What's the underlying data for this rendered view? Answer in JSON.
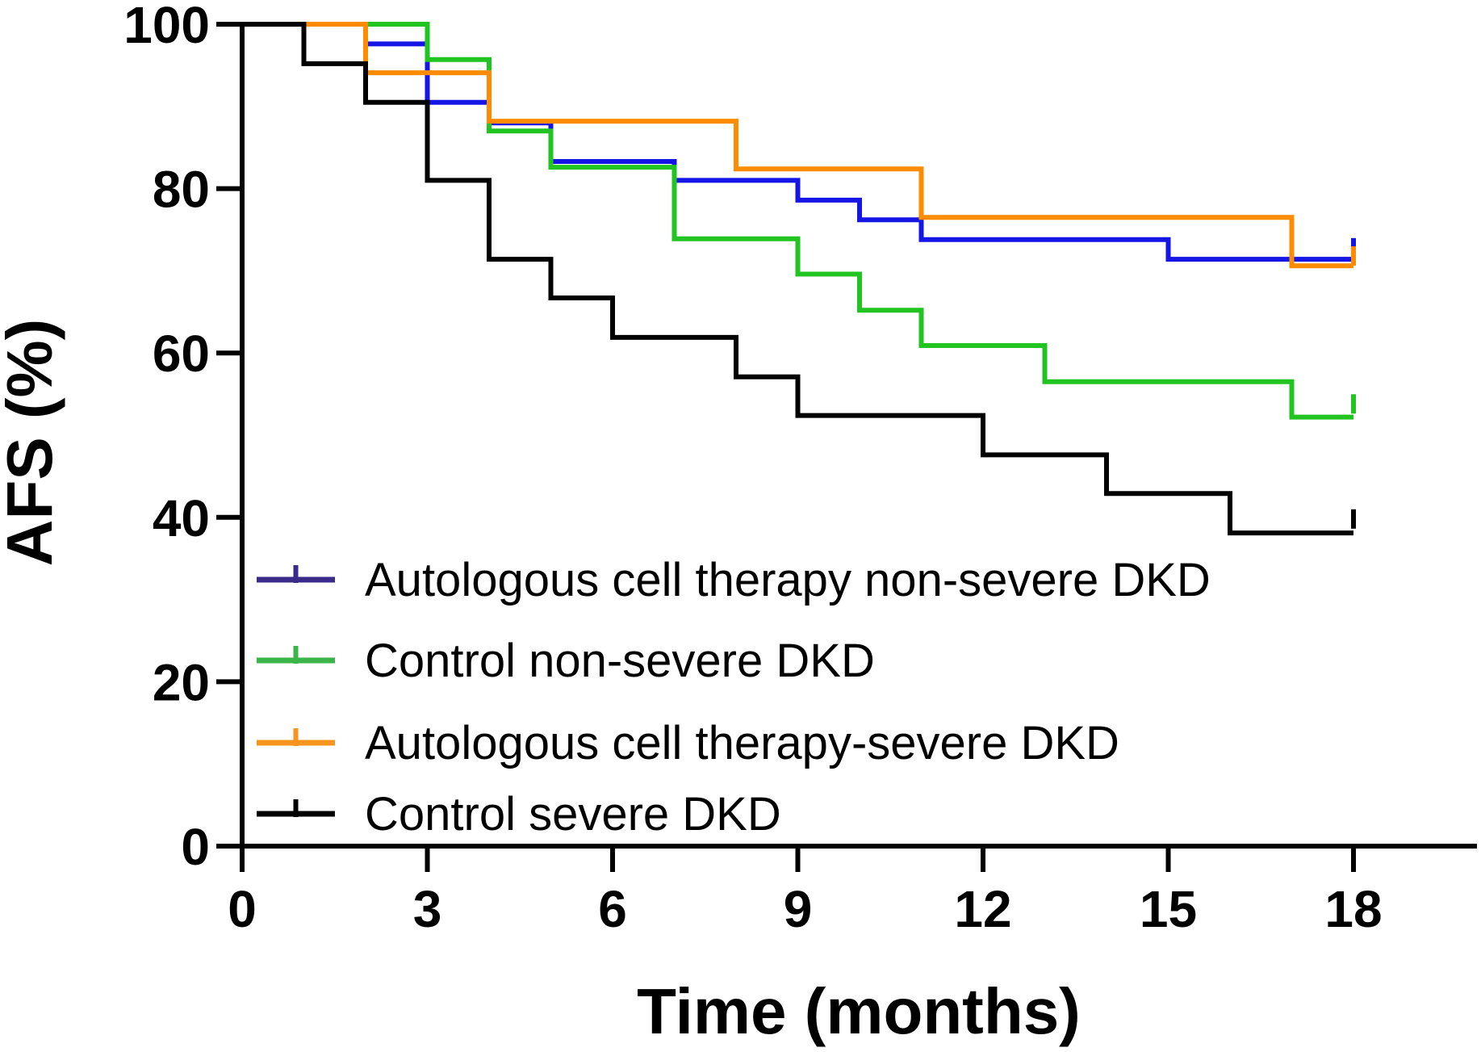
{
  "chart_data": {
    "type": "line",
    "subtype": "kaplan-meier-step",
    "title": "",
    "xlabel": "Time (months)",
    "ylabel": "AFS (%)",
    "xlim": [
      0,
      20
    ],
    "ylim": [
      0,
      100
    ],
    "xticks": [
      0,
      3,
      6,
      9,
      12,
      15,
      18
    ],
    "xtick_labels": [
      "0",
      "3",
      "6",
      "9",
      "12",
      "15",
      "18"
    ],
    "yticks": [
      0,
      20,
      40,
      60,
      80,
      100
    ],
    "ytick_labels": [
      "0",
      "20",
      "40",
      "60",
      "80",
      "100"
    ],
    "grid": false,
    "legend_position": "lower-left",
    "series": [
      {
        "name": "Autologous cell therapy non-severe DKD",
        "color": "#1515e6",
        "legend_color": "#3a2a8a",
        "steps": [
          [
            0,
            100
          ],
          [
            2,
            100
          ],
          [
            2,
            97.6
          ],
          [
            3,
            97.6
          ],
          [
            3,
            90.5
          ],
          [
            4,
            90.5
          ],
          [
            4,
            88
          ],
          [
            5,
            88
          ],
          [
            5,
            83.3
          ],
          [
            7,
            83.3
          ],
          [
            7,
            81
          ],
          [
            9,
            81
          ],
          [
            9,
            78.6
          ],
          [
            10,
            78.6
          ],
          [
            10,
            76.2
          ],
          [
            11,
            76.2
          ],
          [
            11,
            73.8
          ],
          [
            15,
            73.8
          ],
          [
            15,
            71.4
          ],
          [
            18,
            71.4
          ]
        ],
        "censor": [
          [
            18,
            73
          ]
        ]
      },
      {
        "name": "Control non-severe DKD",
        "color": "#22c422",
        "legend_color": "#3bb54a",
        "steps": [
          [
            0,
            100
          ],
          [
            3,
            100
          ],
          [
            3,
            95.7
          ],
          [
            4,
            95.7
          ],
          [
            4,
            87
          ],
          [
            5,
            87
          ],
          [
            5,
            82.6
          ],
          [
            7,
            82.6
          ],
          [
            7,
            73.9
          ],
          [
            9,
            73.9
          ],
          [
            9,
            69.6
          ],
          [
            10,
            69.6
          ],
          [
            10,
            65.2
          ],
          [
            11,
            65.2
          ],
          [
            11,
            60.9
          ],
          [
            13,
            60.9
          ],
          [
            13,
            56.5
          ],
          [
            17,
            56.5
          ],
          [
            17,
            52.2
          ],
          [
            18,
            52.2
          ]
        ],
        "censor": [
          [
            18,
            54
          ]
        ]
      },
      {
        "name": "Autologous cell therapy-severe DKD",
        "color": "#ff8c00",
        "legend_color": "#f7941d",
        "steps": [
          [
            0,
            100
          ],
          [
            2,
            100
          ],
          [
            2,
            94.1
          ],
          [
            4,
            94.1
          ],
          [
            4,
            88.2
          ],
          [
            8,
            88.2
          ],
          [
            8,
            82.4
          ],
          [
            11,
            82.4
          ],
          [
            11,
            76.5
          ],
          [
            17,
            76.5
          ],
          [
            17,
            70.6
          ],
          [
            18,
            70.6
          ]
        ],
        "censor": [
          [
            18,
            72
          ]
        ]
      },
      {
        "name": "Control severe DKD",
        "color": "#000000",
        "legend_color": "#000000",
        "steps": [
          [
            0,
            100
          ],
          [
            1,
            100
          ],
          [
            1,
            95.2
          ],
          [
            2,
            95.2
          ],
          [
            2,
            90.5
          ],
          [
            3,
            90.5
          ],
          [
            3,
            81
          ],
          [
            4,
            81
          ],
          [
            4,
            71.4
          ],
          [
            5,
            71.4
          ],
          [
            5,
            66.7
          ],
          [
            6,
            66.7
          ],
          [
            6,
            61.9
          ],
          [
            8,
            61.9
          ],
          [
            8,
            57.1
          ],
          [
            9,
            57.1
          ],
          [
            9,
            52.4
          ],
          [
            12,
            52.4
          ],
          [
            12,
            47.6
          ],
          [
            14,
            47.6
          ],
          [
            14,
            42.9
          ],
          [
            16,
            42.9
          ],
          [
            16,
            38.1
          ],
          [
            18,
            38.1
          ]
        ],
        "censor": [
          [
            18,
            40
          ]
        ]
      }
    ]
  }
}
